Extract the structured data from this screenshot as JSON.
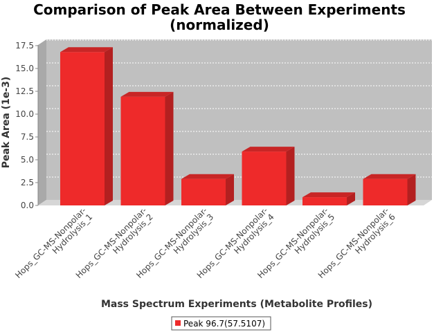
{
  "chart_data": {
    "type": "bar",
    "title_lines": [
      "Comparison of Peak Area Between Experiments",
      "(normalized)"
    ],
    "xlabel": "Mass Spectrum Experiments (Metabolite Profiles)",
    "ylabel": "Peak Area (1e-3)",
    "categories": [
      [
        "Hops_GC-MS-Nonpolar-",
        "Hydrolysis_1"
      ],
      [
        "Hops_GC-MS-Nonpolar-",
        "Hydrolysis_2"
      ],
      [
        "Hops_GC-MS-Nonpolar-",
        "Hydrolysis_3"
      ],
      [
        "Hops_GC-MS-Nonpolar-",
        "Hydrolysis_4"
      ],
      [
        "Hops_GC-MS-Nonpolar-",
        "Hydrolysis_5"
      ],
      [
        "Hops_GC-MS-Nonpolar-",
        "Hydrolysis_6"
      ]
    ],
    "series": [
      {
        "name": "Peak 96.7(57.5107)",
        "values": [
          16.8,
          11.9,
          2.9,
          5.9,
          0.9,
          2.9
        ],
        "color": "#ee2a2a"
      }
    ],
    "yticks": [
      "0.0",
      "2.5",
      "5.0",
      "7.5",
      "10.0",
      "12.5",
      "15.0",
      "17.5"
    ],
    "ylim": [
      0,
      17.5
    ],
    "grid": true,
    "legend_position": "bottom",
    "plot_background": "#c0c0c0"
  }
}
